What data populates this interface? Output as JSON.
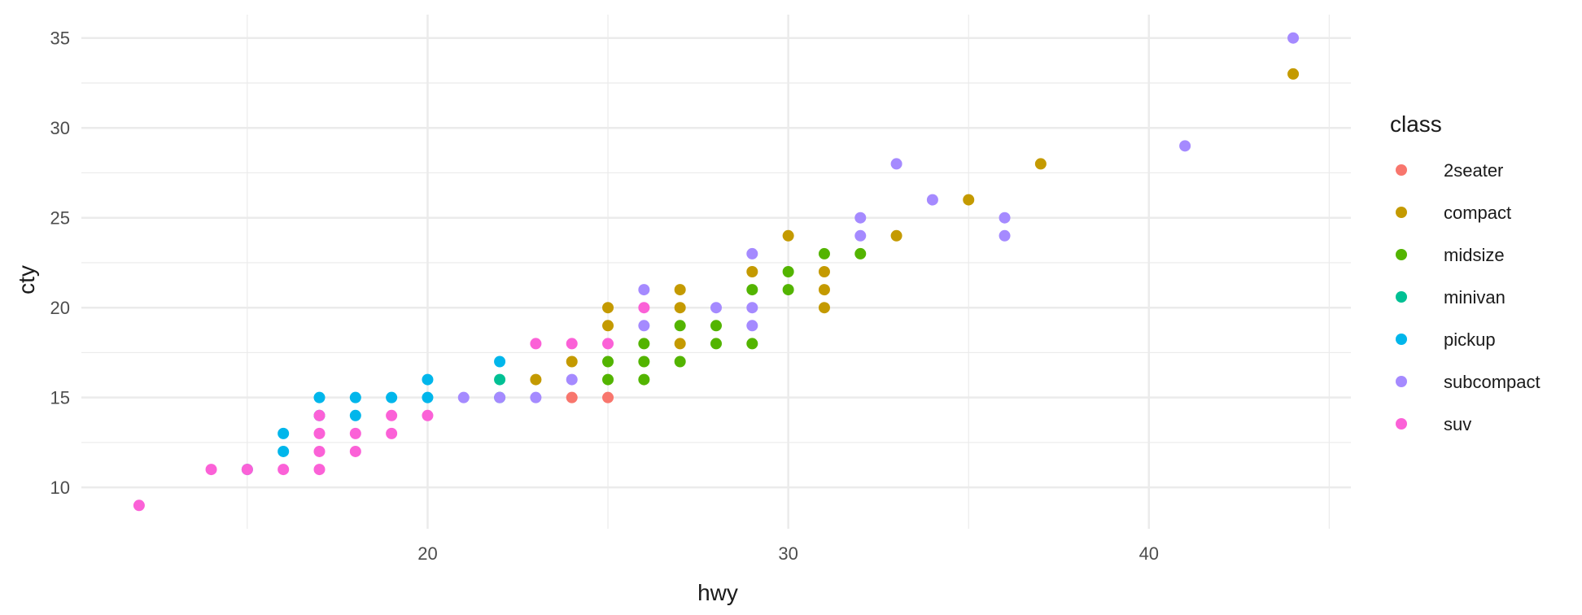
{
  "chart_data": {
    "type": "scatter",
    "xlabel": "hwy",
    "ylabel": "cty",
    "xlim": [
      10.4,
      45.6
    ],
    "ylim": [
      7.7,
      36.3
    ],
    "x_ticks": [
      20,
      30,
      40
    ],
    "y_ticks": [
      10,
      15,
      20,
      25,
      30,
      35
    ],
    "x_minor_ticks": [
      15,
      25,
      35,
      45
    ],
    "y_minor_ticks": [
      12.5,
      17.5,
      22.5,
      27.5,
      32.5
    ],
    "grid": true,
    "legend": {
      "title": "class",
      "position": "right"
    },
    "series": [
      {
        "name": "2seater",
        "color": "#F8766D",
        "points": [
          [
            24,
            15
          ],
          [
            25,
            15
          ]
        ]
      },
      {
        "name": "compact",
        "color": "#C49A00",
        "points": [
          [
            23,
            16
          ],
          [
            24,
            17
          ],
          [
            25,
            19
          ],
          [
            25,
            20
          ],
          [
            27,
            18
          ],
          [
            27,
            20
          ],
          [
            27,
            21
          ],
          [
            29,
            22
          ],
          [
            30,
            24
          ],
          [
            31,
            20
          ],
          [
            31,
            21
          ],
          [
            31,
            22
          ],
          [
            33,
            24
          ],
          [
            35,
            26
          ],
          [
            37,
            28
          ],
          [
            44,
            33
          ]
        ]
      },
      {
        "name": "midsize",
        "color": "#53B400",
        "points": [
          [
            25,
            16
          ],
          [
            25,
            17
          ],
          [
            26,
            16
          ],
          [
            26,
            17
          ],
          [
            26,
            18
          ],
          [
            27,
            17
          ],
          [
            27,
            19
          ],
          [
            28,
            18
          ],
          [
            28,
            19
          ],
          [
            29,
            18
          ],
          [
            29,
            21
          ],
          [
            30,
            21
          ],
          [
            30,
            22
          ],
          [
            31,
            23
          ],
          [
            32,
            23
          ]
        ]
      },
      {
        "name": "minivan",
        "color": "#00C094",
        "points": [
          [
            22,
            16
          ],
          [
            22,
            15
          ]
        ]
      },
      {
        "name": "pickup",
        "color": "#00B6EB",
        "points": [
          [
            15,
            11
          ],
          [
            16,
            12
          ],
          [
            16,
            13
          ],
          [
            17,
            14
          ],
          [
            17,
            15
          ],
          [
            18,
            14
          ],
          [
            18,
            15
          ],
          [
            19,
            15
          ],
          [
            20,
            15
          ],
          [
            20,
            16
          ],
          [
            22,
            17
          ]
        ]
      },
      {
        "name": "subcompact",
        "color": "#A58AFF",
        "points": [
          [
            21,
            15
          ],
          [
            22,
            15
          ],
          [
            23,
            15
          ],
          [
            24,
            16
          ],
          [
            26,
            19
          ],
          [
            26,
            21
          ],
          [
            28,
            20
          ],
          [
            29,
            19
          ],
          [
            29,
            20
          ],
          [
            29,
            23
          ],
          [
            32,
            24
          ],
          [
            32,
            25
          ],
          [
            33,
            28
          ],
          [
            34,
            26
          ],
          [
            36,
            24
          ],
          [
            36,
            25
          ],
          [
            41,
            29
          ],
          [
            44,
            35
          ]
        ]
      },
      {
        "name": "suv",
        "color": "#FB61D7",
        "points": [
          [
            12,
            9
          ],
          [
            14,
            11
          ],
          [
            15,
            11
          ],
          [
            16,
            11
          ],
          [
            17,
            11
          ],
          [
            17,
            12
          ],
          [
            17,
            13
          ],
          [
            17,
            14
          ],
          [
            18,
            12
          ],
          [
            18,
            13
          ],
          [
            19,
            13
          ],
          [
            19,
            14
          ],
          [
            20,
            14
          ],
          [
            23,
            18
          ],
          [
            24,
            18
          ],
          [
            25,
            18
          ],
          [
            26,
            20
          ]
        ]
      }
    ]
  }
}
